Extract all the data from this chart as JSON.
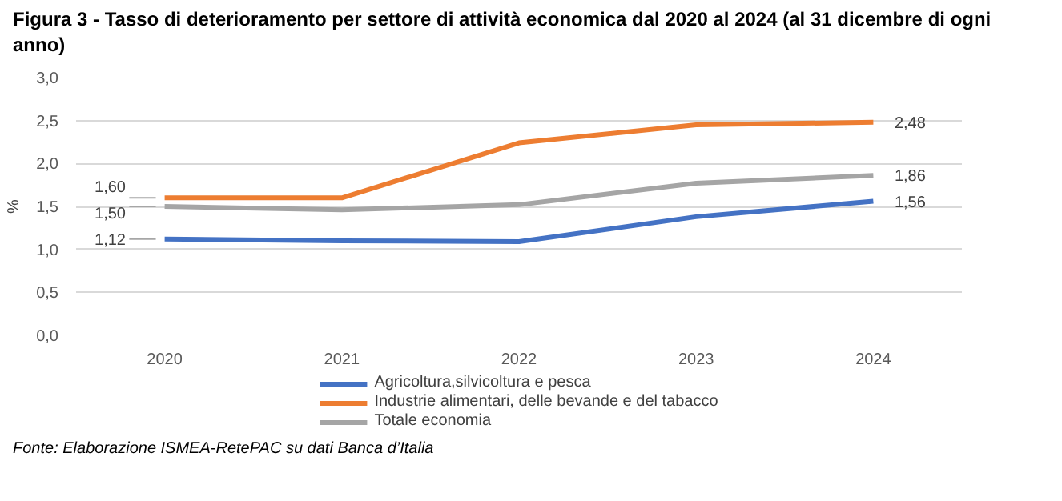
{
  "chart_data": {
    "type": "line",
    "title": "Figura 3 - Tasso di deterioramento per settore di attività economica dal 2020 al 2024 (al 31 dicembre di ogni anno)",
    "ylabel": "%",
    "categories": [
      "2020",
      "2021",
      "2022",
      "2023",
      "2024"
    ],
    "series": [
      {
        "name": "Agricoltura,silvicoltura e pesca",
        "color": "#4472c4",
        "values": [
          1.12,
          1.1,
          1.09,
          1.38,
          1.56
        ],
        "value_labels": [
          "1,12",
          null,
          null,
          null,
          "1,56"
        ]
      },
      {
        "name": "Industrie alimentari, delle bevande e del tabacco",
        "color": "#ed7d31",
        "values": [
          1.6,
          1.6,
          2.24,
          2.45,
          2.48
        ],
        "value_labels": [
          "1,60",
          null,
          null,
          null,
          "2,48"
        ]
      },
      {
        "name": "Totale economia",
        "color": "#a5a5a5",
        "values": [
          1.5,
          1.46,
          1.52,
          1.77,
          1.86
        ],
        "value_labels": [
          "1,50",
          null,
          null,
          null,
          "1,86"
        ]
      }
    ],
    "ylim": [
      0,
      3
    ],
    "yticks": [
      {
        "value": 0,
        "label": "0,0"
      },
      {
        "value": 0.5,
        "label": "0,5"
      },
      {
        "value": 1,
        "label": "1,0"
      },
      {
        "value": 1.5,
        "label": "1,5"
      },
      {
        "value": 2,
        "label": "2,0"
      },
      {
        "value": 2.5,
        "label": "2,5"
      },
      {
        "value": 3,
        "label": "3,0"
      }
    ],
    "grid": "y",
    "legend": "bottom",
    "marker": "none",
    "line_style": "solid",
    "annotations": [
      "Fonte: Elaborazione ISMEA-RetePAC su dati Banca d’Italia"
    ]
  }
}
